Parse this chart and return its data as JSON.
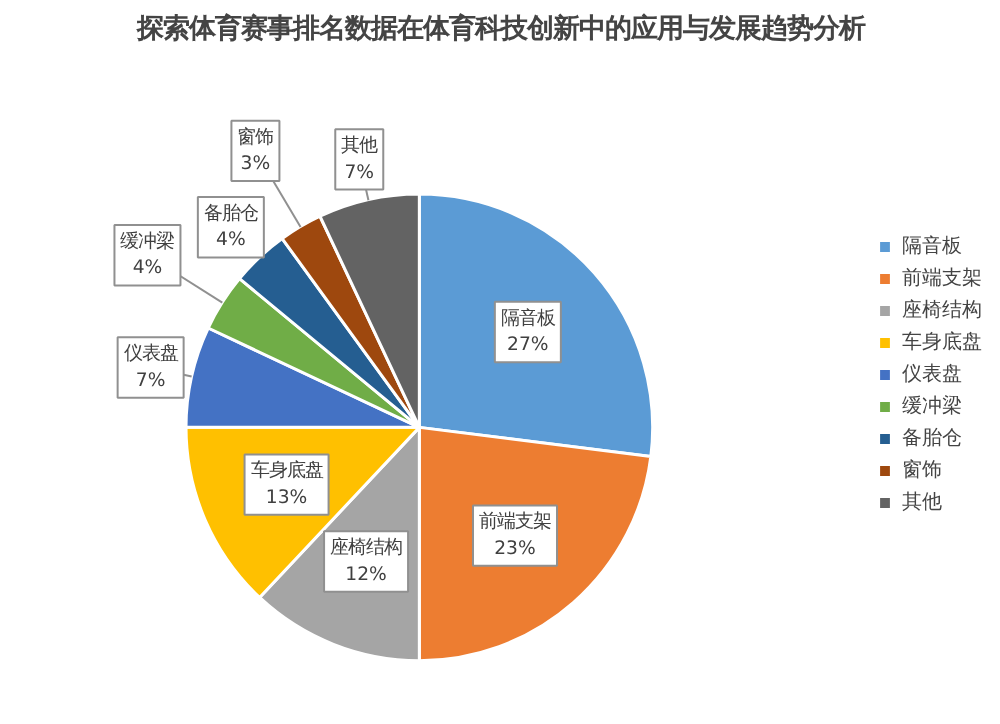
{
  "chart_data": {
    "type": "pie",
    "title": "探索体育赛事排名数据在体育科技创新中的应用与发展趋势分析",
    "categories": [
      "隔音板",
      "前端支架",
      "座椅结构",
      "车身底盘",
      "仪表盘",
      "缓冲梁",
      "备胎仓",
      "窗饰",
      "其他"
    ],
    "values": [
      27,
      23,
      12,
      13,
      7,
      4,
      4,
      3,
      7
    ],
    "value_labels": [
      "27%",
      "23%",
      "12%",
      "13%",
      "7%",
      "4%",
      "4%",
      "3%",
      "7%"
    ],
    "colors": [
      "#5b9bd5",
      "#ed7d31",
      "#a5a5a5",
      "#ffc000",
      "#4472c4",
      "#70ad47",
      "#255e91",
      "#9e480e",
      "#636363"
    ],
    "legend": "right"
  }
}
